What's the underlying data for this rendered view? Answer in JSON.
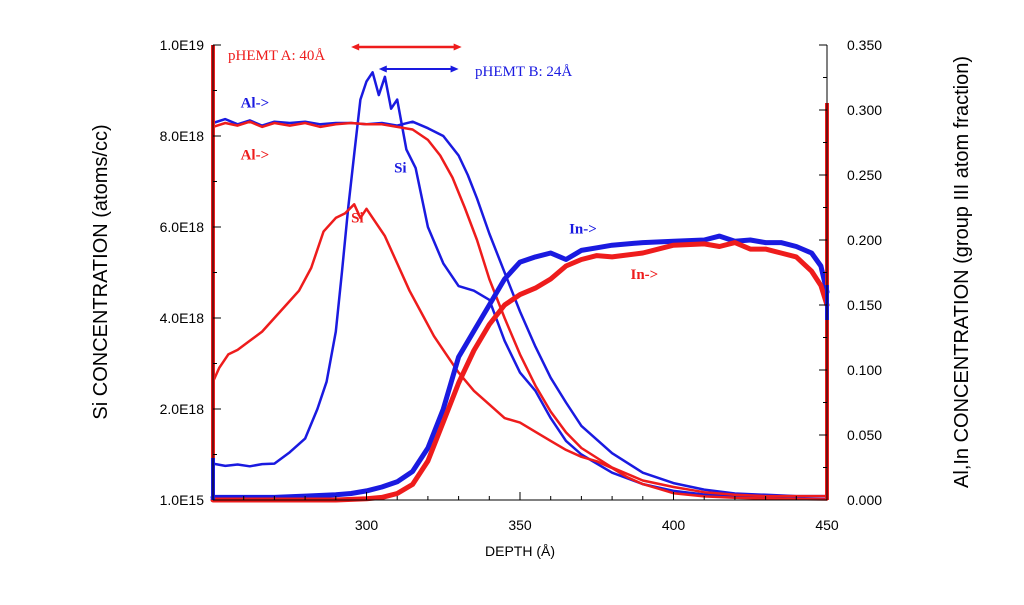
{
  "chart_data": {
    "type": "line",
    "xlabel": "DEPTH (Å)",
    "ylabel_left": "Si CONCENTRATION (atoms/cc)",
    "ylabel_right": "Al,In CONCENTRATION (group III atom fraction)",
    "xlim": [
      250,
      450
    ],
    "ylim_left": [
      0,
      1e+19
    ],
    "ylim_right": [
      0,
      0.35
    ],
    "x_ticks": [
      "300",
      "350",
      "400",
      "450"
    ],
    "x_tick_values": [
      300,
      350,
      400,
      450
    ],
    "y_left_ticks": [
      "1.0E15",
      "2.0E18",
      "4.0E18",
      "6.0E18",
      "8.0E18",
      "1.0E19"
    ],
    "y_left_tick_values": [
      0,
      2e+18,
      4e+18,
      6e+18,
      8e+18,
      1e+19
    ],
    "y_right_ticks": [
      "0.000",
      "0.050",
      "0.100",
      "0.150",
      "0.200",
      "0.250",
      "0.300",
      "0.350"
    ],
    "y_right_tick_values": [
      0,
      0.05,
      0.1,
      0.15,
      0.2,
      0.25,
      0.3,
      0.35
    ],
    "colors": {
      "pHEMT_A": "#ee1c1c",
      "pHEMT_B": "#1a1ae0"
    },
    "series": [
      {
        "name": "pHEMT B Si",
        "color": "#1a1ae0",
        "axis": "left",
        "width": 2.5,
        "x": [
          250,
          254,
          258,
          262,
          266,
          270,
          275,
          280,
          284,
          287,
          290,
          292,
          294,
          296,
          298,
          300,
          302,
          304,
          306,
          308,
          310,
          313,
          316,
          320,
          325,
          330,
          335,
          340,
          345,
          350,
          355,
          360,
          365,
          370,
          380,
          390,
          400,
          410,
          420,
          430,
          440,
          450
        ],
        "values": [
          8e+17,
          7.5e+17,
          7.8e+17,
          7.4e+17,
          7.9e+17,
          8e+17,
          1.05e+18,
          1.35e+18,
          2e+18,
          2.6e+18,
          3.7e+18,
          5e+18,
          6.4e+18,
          7.6e+18,
          8.8e+18,
          9.2e+18,
          9.4e+18,
          8.9e+18,
          9.3e+18,
          8.6e+18,
          8.8e+18,
          7.7e+18,
          7.3e+18,
          6e+18,
          5.2e+18,
          4.7e+18,
          4.6e+18,
          4.4e+18,
          3.5e+18,
          2.8e+18,
          2.4e+18,
          1.8e+18,
          1.3e+18,
          1e+18,
          6e+17,
          3.5e+17,
          2e+17,
          1.2e+17,
          8e+16,
          5e+16,
          3e+16,
          2e+16
        ]
      },
      {
        "name": "pHEMT A Si",
        "color": "#ee1c1c",
        "axis": "left",
        "width": 2.5,
        "x": [
          250,
          252,
          255,
          258,
          262,
          266,
          270,
          274,
          278,
          282,
          286,
          290,
          293,
          296,
          298,
          300,
          303,
          306,
          310,
          314,
          318,
          322,
          326,
          330,
          335,
          340,
          345,
          350,
          355,
          360,
          365,
          370,
          375,
          380,
          385,
          390,
          395,
          400,
          410,
          420,
          430,
          440,
          450
        ],
        "values": [
          2.6e+18,
          2.9e+18,
          3.2e+18,
          3.3e+18,
          3.5e+18,
          3.7e+18,
          4e+18,
          4.3e+18,
          4.6e+18,
          5.1e+18,
          5.9e+18,
          6.2e+18,
          6.3e+18,
          6.5e+18,
          6.2e+18,
          6.4e+18,
          6.1e+18,
          5.8e+18,
          5.2e+18,
          4.6e+18,
          4.1e+18,
          3.6e+18,
          3.2e+18,
          2.8e+18,
          2.4e+18,
          2.1e+18,
          1.8e+18,
          1.7e+18,
          1.5e+18,
          1.3e+18,
          1.1e+18,
          9.5e+17,
          8.5e+17,
          7e+17,
          5e+17,
          3.5e+17,
          2.5e+17,
          1.5e+17,
          8e+16,
          5e+16,
          3e+16,
          2e+16,
          1e+16
        ]
      },
      {
        "name": "pHEMT B Al",
        "color": "#1a1ae0",
        "axis": "right",
        "width": 2.5,
        "x": [
          250,
          254,
          258,
          262,
          266,
          270,
          275,
          280,
          285,
          290,
          295,
          300,
          305,
          310,
          315,
          320,
          325,
          330,
          333,
          336,
          340,
          345,
          350,
          355,
          360,
          365,
          370,
          380,
          390,
          400,
          410,
          420,
          430,
          440,
          450
        ],
        "values": [
          0.29,
          0.293,
          0.289,
          0.292,
          0.288,
          0.291,
          0.29,
          0.291,
          0.289,
          0.29,
          0.29,
          0.289,
          0.29,
          0.288,
          0.291,
          0.286,
          0.28,
          0.265,
          0.25,
          0.232,
          0.205,
          0.175,
          0.145,
          0.118,
          0.094,
          0.075,
          0.057,
          0.036,
          0.021,
          0.013,
          0.008,
          0.005,
          0.004,
          0.003,
          0.003
        ]
      },
      {
        "name": "pHEMT A Al",
        "color": "#ee1c1c",
        "axis": "right",
        "width": 2.5,
        "x": [
          250,
          254,
          258,
          262,
          266,
          270,
          275,
          280,
          285,
          290,
          295,
          300,
          305,
          310,
          315,
          320,
          324,
          328,
          332,
          336,
          340,
          345,
          350,
          355,
          360,
          365,
          370,
          380,
          390,
          400,
          410,
          420,
          430,
          440,
          450
        ],
        "values": [
          0.287,
          0.29,
          0.288,
          0.291,
          0.287,
          0.29,
          0.288,
          0.29,
          0.287,
          0.289,
          0.29,
          0.289,
          0.289,
          0.287,
          0.285,
          0.277,
          0.265,
          0.248,
          0.225,
          0.2,
          0.17,
          0.14,
          0.112,
          0.088,
          0.068,
          0.052,
          0.04,
          0.025,
          0.015,
          0.01,
          0.006,
          0.004,
          0.003,
          0.003,
          0.003
        ]
      },
      {
        "name": "pHEMT B In",
        "color": "#1a1ae0",
        "axis": "right",
        "width": 5,
        "x": [
          250,
          260,
          270,
          280,
          290,
          295,
          300,
          305,
          310,
          315,
          320,
          325,
          330,
          335,
          340,
          345,
          350,
          355,
          360,
          365,
          370,
          375,
          380,
          390,
          400,
          410,
          415,
          420,
          425,
          430,
          435,
          440,
          445,
          448,
          450
        ],
        "values": [
          0.002,
          0.002,
          0.002,
          0.003,
          0.004,
          0.005,
          0.007,
          0.01,
          0.014,
          0.022,
          0.04,
          0.07,
          0.11,
          0.13,
          0.15,
          0.17,
          0.183,
          0.187,
          0.19,
          0.185,
          0.192,
          0.194,
          0.196,
          0.198,
          0.199,
          0.2,
          0.203,
          0.199,
          0.2,
          0.198,
          0.198,
          0.195,
          0.19,
          0.18,
          0.16
        ]
      },
      {
        "name": "pHEMT A In",
        "color": "#ee1c1c",
        "axis": "right",
        "width": 5,
        "x": [
          250,
          260,
          270,
          280,
          290,
          300,
          305,
          310,
          315,
          320,
          325,
          330,
          335,
          340,
          345,
          350,
          355,
          360,
          365,
          370,
          375,
          380,
          390,
          400,
          410,
          415,
          420,
          425,
          430,
          435,
          440,
          445,
          448,
          450
        ],
        "values": [
          0.0,
          0.0,
          0.0,
          0.0,
          0.0,
          0.001,
          0.002,
          0.005,
          0.012,
          0.03,
          0.06,
          0.09,
          0.115,
          0.135,
          0.15,
          0.158,
          0.163,
          0.17,
          0.18,
          0.185,
          0.188,
          0.187,
          0.19,
          0.196,
          0.197,
          0.195,
          0.198,
          0.193,
          0.193,
          0.19,
          0.187,
          0.176,
          0.165,
          0.15
        ]
      }
    ],
    "labels": [
      {
        "text": "Al->",
        "x": 259,
        "y_right": 0.302,
        "color": "#1a1ae0",
        "bold": true
      },
      {
        "text": "Al->",
        "x": 259,
        "y_right": 0.262,
        "color": "#ee1c1c",
        "bold": true
      },
      {
        "text": "Si",
        "x": 309,
        "y_left": 7.2e+18,
        "color": "#1a1ae0",
        "bold": true
      },
      {
        "text": "Si",
        "x": 252.5,
        "y_left": 6.1e+18,
        "color": "#ee1c1c",
        "bold": true,
        "anchor_x": 295
      },
      {
        "text": "In->",
        "x": 366,
        "y_right": 0.205,
        "color": "#1a1ae0",
        "bold": true
      },
      {
        "text": "In->",
        "x": 386,
        "y_right": 0.17,
        "color": "#ee1c1c",
        "bold": true
      }
    ],
    "annotations": [
      {
        "text": "pHEMT A: 40Å",
        "color": "#ee1c1c",
        "arrow_from": 295,
        "arrow_to": 331
      },
      {
        "text": "pHEMT B: 24Å",
        "color": "#1a1ae0",
        "arrow_from": 304,
        "arrow_to": 330
      }
    ]
  }
}
